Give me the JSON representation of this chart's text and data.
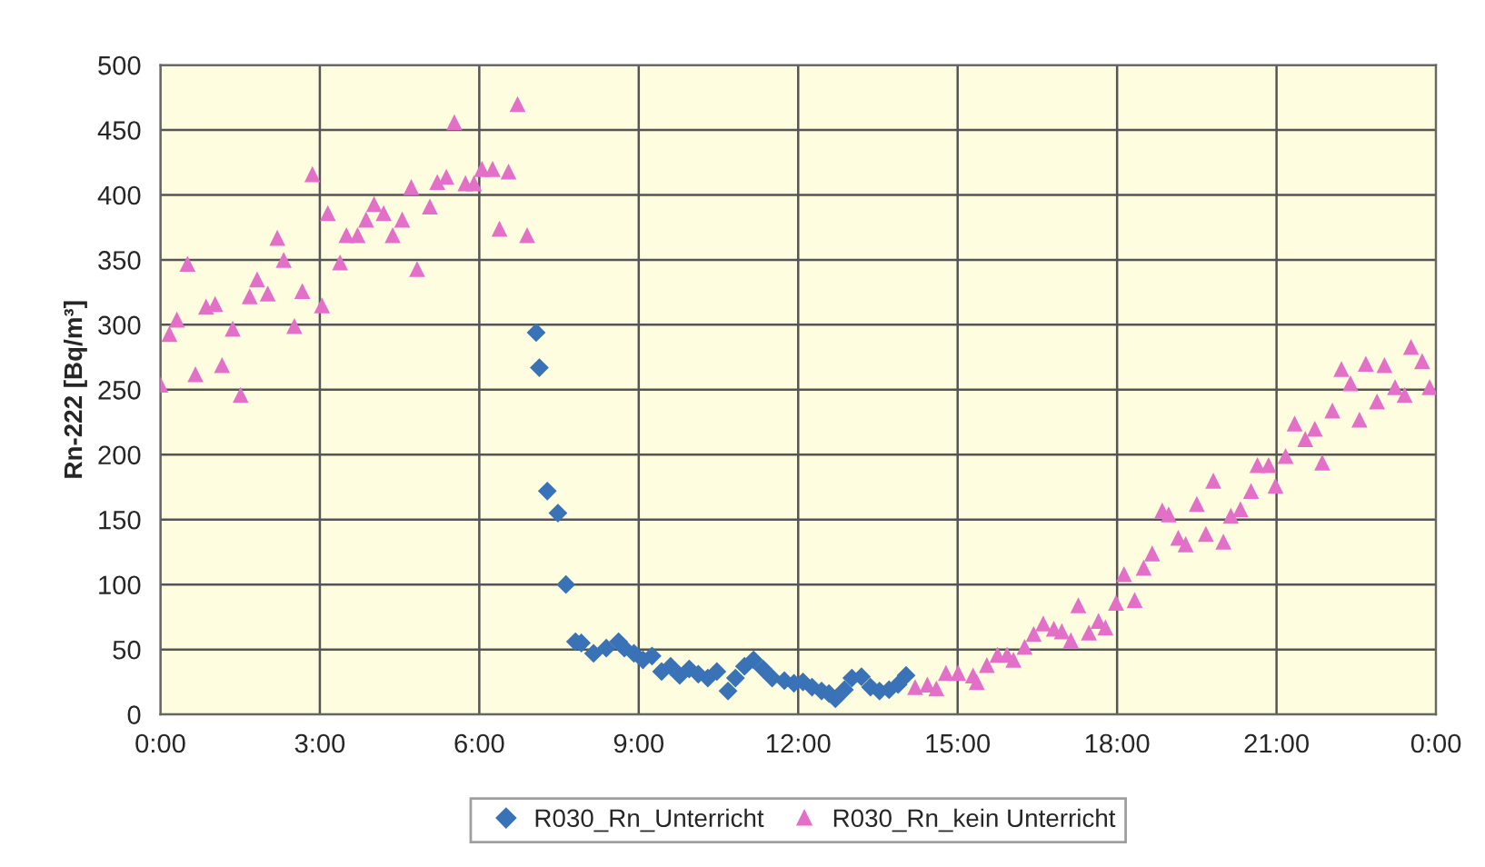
{
  "chart_data": {
    "type": "scatter",
    "ylabel": "Rn-222 [Bq/m³]",
    "xlim": [
      0,
      24
    ],
    "ylim": [
      0,
      500
    ],
    "xticks": [
      {
        "value": 0,
        "label": "0:00"
      },
      {
        "value": 3,
        "label": "3:00"
      },
      {
        "value": 6,
        "label": "6:00"
      },
      {
        "value": 9,
        "label": "9:00"
      },
      {
        "value": 12,
        "label": "12:00"
      },
      {
        "value": 15,
        "label": "15:00"
      },
      {
        "value": 18,
        "label": "18:00"
      },
      {
        "value": 21,
        "label": "21:00"
      },
      {
        "value": 24,
        "label": "0:00"
      }
    ],
    "yticks": [
      0,
      50,
      100,
      150,
      200,
      250,
      300,
      350,
      400,
      450,
      500
    ],
    "grid": true,
    "legend": "bottom",
    "series": [
      {
        "name": "R030_Rn_Unterricht",
        "color": "#3a72b8",
        "marker": "diamond",
        "x": [
          7.07,
          7.13,
          7.28,
          7.48,
          7.63,
          7.81,
          7.92,
          8.15,
          8.39,
          8.62,
          8.73,
          8.91,
          9.08,
          9.25,
          9.43,
          9.6,
          9.77,
          9.95,
          10.12,
          10.3,
          10.47,
          10.68,
          10.82,
          10.99,
          11.16,
          11.34,
          11.51,
          11.74,
          11.92,
          12.09,
          12.26,
          12.44,
          12.58,
          12.7,
          12.87,
          13.01,
          13.19,
          13.36,
          13.53,
          13.71,
          13.88,
          14.03
        ],
        "values": [
          294,
          267,
          172,
          155,
          100,
          56,
          55,
          47,
          51,
          56,
          51,
          47,
          42,
          45,
          33,
          37,
          30,
          35,
          31,
          28,
          33,
          18,
          28,
          37,
          42,
          35,
          28,
          26,
          24,
          25,
          21,
          18,
          16,
          12,
          19,
          28,
          29,
          21,
          18,
          19,
          23,
          30
        ]
      },
      {
        "name": "R030_Rn_kein Unterricht",
        "color": "#e36fc8",
        "marker": "triangle",
        "x": [
          0.0,
          0.17,
          0.31,
          0.51,
          0.66,
          0.86,
          1.03,
          1.16,
          1.36,
          1.51,
          1.68,
          1.82,
          2.02,
          2.2,
          2.32,
          2.52,
          2.67,
          2.86,
          3.04,
          3.15,
          3.38,
          3.5,
          3.71,
          3.87,
          4.02,
          4.2,
          4.37,
          4.55,
          4.72,
          4.83,
          5.07,
          5.21,
          5.38,
          5.53,
          5.74,
          5.9,
          6.05,
          6.25,
          6.38,
          6.55,
          6.72,
          6.9,
          14.2,
          14.43,
          14.6,
          14.78,
          15.01,
          15.29,
          15.36,
          15.55,
          15.75,
          15.93,
          16.05,
          16.26,
          16.43,
          16.61,
          16.81,
          16.96,
          17.13,
          17.27,
          17.47,
          17.65,
          17.78,
          17.98,
          18.13,
          18.33,
          18.5,
          18.66,
          18.85,
          18.97,
          19.15,
          19.29,
          19.5,
          19.67,
          19.81,
          20.0,
          20.14,
          20.32,
          20.52,
          20.64,
          20.85,
          20.98,
          21.17,
          21.34,
          21.54,
          21.72,
          21.86,
          22.05,
          22.22,
          22.39,
          22.56,
          22.68,
          22.89,
          23.03,
          23.23,
          23.41,
          23.53,
          23.74,
          23.88
        ],
        "values": [
          254,
          293,
          304,
          347,
          262,
          314,
          316,
          269,
          297,
          246,
          322,
          335,
          324,
          367,
          350,
          299,
          326,
          416,
          315,
          386,
          348,
          369,
          369,
          381,
          393,
          386,
          369,
          381,
          406,
          343,
          391,
          410,
          414,
          456,
          409,
          409,
          420,
          420,
          374,
          418,
          470,
          369,
          21,
          23,
          20,
          32,
          32,
          30,
          25,
          38,
          46,
          46,
          42,
          52,
          62,
          70,
          66,
          64,
          57,
          84,
          63,
          72,
          67,
          86,
          108,
          88,
          113,
          124,
          157,
          154,
          136,
          131,
          162,
          139,
          180,
          133,
          153,
          158,
          172,
          192,
          192,
          176,
          199,
          224,
          212,
          220,
          194,
          234,
          266,
          255,
          227,
          270,
          241,
          269,
          252,
          246,
          283,
          272,
          252
        ]
      }
    ]
  }
}
